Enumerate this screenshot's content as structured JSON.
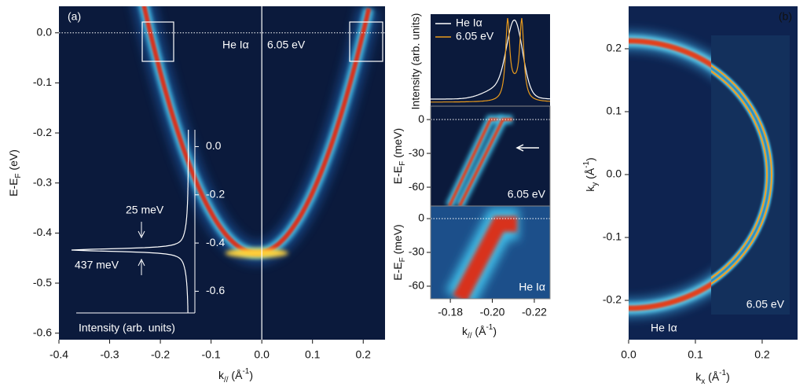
{
  "chart_data": [
    {
      "type": "heatmap",
      "panel": "(a)",
      "xlabel": [
        {
          "text": "k"
        },
        {
          "text": "//",
          "shift": "sub"
        },
        {
          "text": " (Å"
        },
        {
          "text": "-1",
          "shift": "super"
        },
        {
          "text": ")"
        }
      ],
      "ylabel": [
        {
          "text": "E-E"
        },
        {
          "text": "F",
          "shift": "sub"
        },
        {
          "text": " (eV)"
        }
      ],
      "xlim": [
        -0.4,
        0.243
      ],
      "ylim": [
        -0.613,
        0.053
      ],
      "xticks": [
        -0.4,
        -0.3,
        -0.2,
        -0.1,
        {
          "value": 0,
          "label": "0.0"
        },
        0.1,
        0.2
      ],
      "yticks": [
        {
          "value": 0,
          "label": "0.0"
        },
        -0.1,
        -0.2,
        -0.3,
        -0.4,
        -0.5,
        -0.6
      ],
      "annotations": [
        "He Iα",
        "6.05 eV"
      ]
    },
    {
      "type": "line",
      "xlabel": "Intensity (arb. units)",
      "ylim": [
        -0.69,
        0.07
      ],
      "yticks": [
        {
          "value": 0,
          "label": "0.0"
        },
        -0.2,
        -0.4,
        -0.6
      ],
      "annotations": [
        "25 meV",
        "437 meV"
      ]
    },
    {
      "type": "line",
      "ylabel": "Intensity (arb. units)",
      "series": [
        {
          "name": "He Iα",
          "color": "#ffffff"
        },
        {
          "name": "6.05 eV",
          "color": "#e89a1c"
        }
      ]
    },
    {
      "type": "heatmap",
      "xlim": [
        -0.1706,
        -0.2275
      ],
      "ylim": [
        -76.7,
        11.9
      ],
      "ylabel": [
        {
          "text": "E-E"
        },
        {
          "text": "F",
          "shift": "sub"
        },
        {
          "text": " (meV)"
        }
      ],
      "yticks": [
        0,
        -30,
        -60
      ],
      "annotations": [
        "6.05 eV"
      ]
    },
    {
      "type": "heatmap",
      "xlim": [
        -0.1706,
        -0.2275
      ],
      "ylim": [
        -71.2,
        11.2
      ],
      "ylabel": [
        {
          "text": "E-E"
        },
        {
          "text": "F",
          "shift": "sub"
        },
        {
          "text": " (meV)"
        }
      ],
      "yticks": [
        0,
        -30,
        -60
      ],
      "xticks": [
        -0.18,
        {
          "value": -0.2,
          "label": "-0.20"
        },
        -0.22
      ],
      "xlabel": [
        {
          "text": "k"
        },
        {
          "text": "//",
          "shift": "sub"
        },
        {
          "text": " (Å"
        },
        {
          "text": "-1",
          "shift": "super"
        },
        {
          "text": ")"
        }
      ],
      "annotations": [
        "He Iα"
      ]
    },
    {
      "type": "heatmap",
      "panel": "(b)",
      "xlabel": [
        {
          "text": "k"
        },
        {
          "text": "x",
          "shift": "sub"
        },
        {
          "text": " (Å"
        },
        {
          "text": "-1",
          "shift": "super"
        },
        {
          "text": ")"
        }
      ],
      "ylabel": [
        {
          "text": "k"
        },
        {
          "text": "y",
          "shift": "sub"
        },
        {
          "text": " (Å"
        },
        {
          "text": "-1",
          "shift": "super"
        },
        {
          "text": ")"
        }
      ],
      "xlim": [
        0,
        0.253
      ],
      "ylim": [
        -0.2625,
        0.2675
      ],
      "xticks": [
        {
          "value": 0,
          "label": "0.0"
        },
        0.1,
        0.2
      ],
      "yticks": [
        0.2,
        0.1,
        {
          "value": 0,
          "label": "0.0"
        },
        -0.1,
        -0.2
      ],
      "annotations": [
        "He Iα",
        "6.05 eV"
      ]
    }
  ]
}
